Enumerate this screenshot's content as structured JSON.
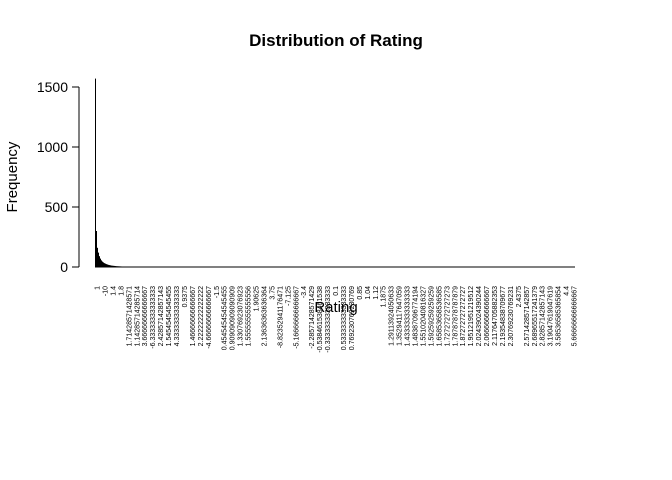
{
  "chart_data": {
    "type": "bar",
    "title": "Distribution of Rating",
    "xlabel": "Rating",
    "ylabel": "Frequency",
    "ylim": [
      0,
      1600
    ],
    "yticks": [
      0,
      500,
      1000,
      1500
    ],
    "grid": false,
    "legend": "none",
    "bar_color": "#000000",
    "categories": [
      "1",
      "-10",
      "1.4",
      "1.8",
      "1.71428571428571",
      "1.14285714285714",
      "3.66666666666667",
      "-6.33333333333333",
      "2.42857142857143",
      "1.54545454545455",
      "4.33333333333333",
      "0.9375",
      "1.46666666666667",
      "2.22222222222222",
      "-4.66666666666667",
      "-1.5",
      "0.454545454545455",
      "0.909090909090909",
      "1.33076923076923",
      "1.55555555555556",
      "1.90625",
      "2.13636363636364",
      "3.75",
      "-8.82352941176471",
      "-7.125",
      "-5.16666666666667",
      "-3.4",
      "-2.28571428571429",
      "-0.538461538461538",
      "-0.333333333333333",
      "0.1",
      "0.533333333333333",
      "0.769230769230769",
      "0.85",
      "1.04",
      "1.12",
      "1.1875",
      "1.29113924050633",
      "1.35294117647059",
      "1.43333333333333",
      "1.48387096774194",
      "1.55102040816327",
      "1.59259259259259",
      "1.65853658536585",
      "1.72727272727273",
      "1.78787878787879",
      "1.87272727272727",
      "1.95121951219512",
      "2.02439024390244",
      "2.06666666666667",
      "2.11764705882353",
      "2.19354838709677",
      "2.30769230769231",
      "2.4375",
      "2.57142857142857",
      "2.68965517241379",
      "2.82857142857143",
      "3.19047619047619",
      "3.58536585365854",
      "4.4",
      "5.66666666666667"
    ],
    "values": [
      1570,
      300,
      160,
      120,
      90,
      70,
      55,
      45,
      38,
      32,
      28,
      24,
      21,
      18,
      16,
      14,
      12,
      11,
      10,
      9,
      8,
      7,
      6.5,
      6,
      5.5,
      5,
      4.5,
      4,
      3.8,
      3.6,
      3.4,
      3.2,
      3,
      2.8,
      2.6,
      2.4,
      2.2,
      2,
      2,
      1.8,
      1.8,
      1.6,
      1.6,
      1.4,
      1.4,
      1.2,
      1.2,
      1,
      1,
      1,
      1,
      1,
      1,
      1,
      1,
      1,
      1,
      1,
      1,
      1,
      1
    ]
  }
}
